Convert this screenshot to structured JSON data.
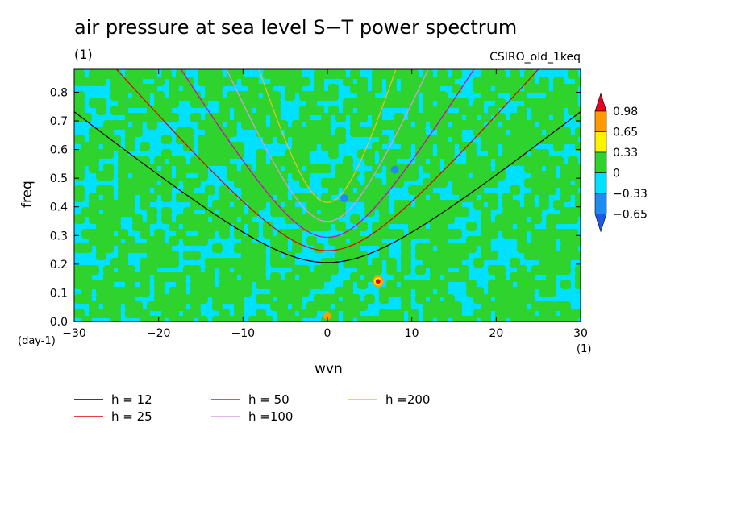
{
  "title": "air pressure at sea level S−T power spectrum",
  "subtitle_left": "(1)",
  "model_name": "CSIRO_old_1keq",
  "xaxis": {
    "label": "wvn",
    "unit_label": "(1)",
    "ticks": [
      -30,
      -20,
      -10,
      0,
      10,
      20,
      30
    ],
    "tick_labels": [
      "−30",
      "−20",
      "−10",
      "0",
      "10",
      "20",
      "30"
    ],
    "range": [
      -30,
      30
    ]
  },
  "yaxis": {
    "label": "freq",
    "unit_label": "(day-1)",
    "ticks": [
      0.0,
      0.1,
      0.2,
      0.3,
      0.4,
      0.5,
      0.6,
      0.7,
      0.8
    ],
    "tick_labels": [
      "0.0",
      "0.1",
      "0.2",
      "0.3",
      "0.4",
      "0.5",
      "0.6",
      "0.7",
      "0.8"
    ],
    "range": [
      0,
      0.88
    ]
  },
  "colorbar": {
    "levels": [
      "0.98",
      "0.65",
      "0.33",
      "0",
      "−0.33",
      "−0.65"
    ],
    "colors": [
      "#e8001c",
      "#ff9a00",
      "#fff200",
      "#2ed32e",
      "#00e1ff",
      "#1e8cf0",
      "#1c5ae6"
    ]
  },
  "chart_data": {
    "type": "heatmap",
    "title": "air pressure at sea level S−T power spectrum",
    "xlabel": "wvn",
    "ylabel": "freq",
    "xlim": [
      -30,
      30
    ],
    "ylim": [
      0,
      0.88
    ],
    "field_levels": [
      -0.65,
      -0.33,
      0,
      0.33,
      0.65,
      0.98
    ],
    "features": [
      {
        "x": 6,
        "y": 0.14,
        "value": 0.98
      },
      {
        "x": 0,
        "y": 0.02,
        "value": 0.65
      },
      {
        "x": 8,
        "y": 0.53,
        "value": -0.65
      },
      {
        "x": 2,
        "y": 0.43,
        "value": -0.65
      },
      {
        "x": 4,
        "y": 0.5,
        "value": -0.33
      }
    ],
    "series": [
      {
        "name": "h = 12",
        "color": "#000000",
        "equivalent_depth": 12
      },
      {
        "name": "h = 25",
        "color": "#e00000",
        "equivalent_depth": 25
      },
      {
        "name": "h = 50",
        "color": "#d000c0",
        "equivalent_depth": 50
      },
      {
        "name": "h =100",
        "color": "#d89ae8",
        "equivalent_depth": 100
      },
      {
        "name": "h =200",
        "color": "#f0c020",
        "equivalent_depth": 200
      }
    ]
  }
}
